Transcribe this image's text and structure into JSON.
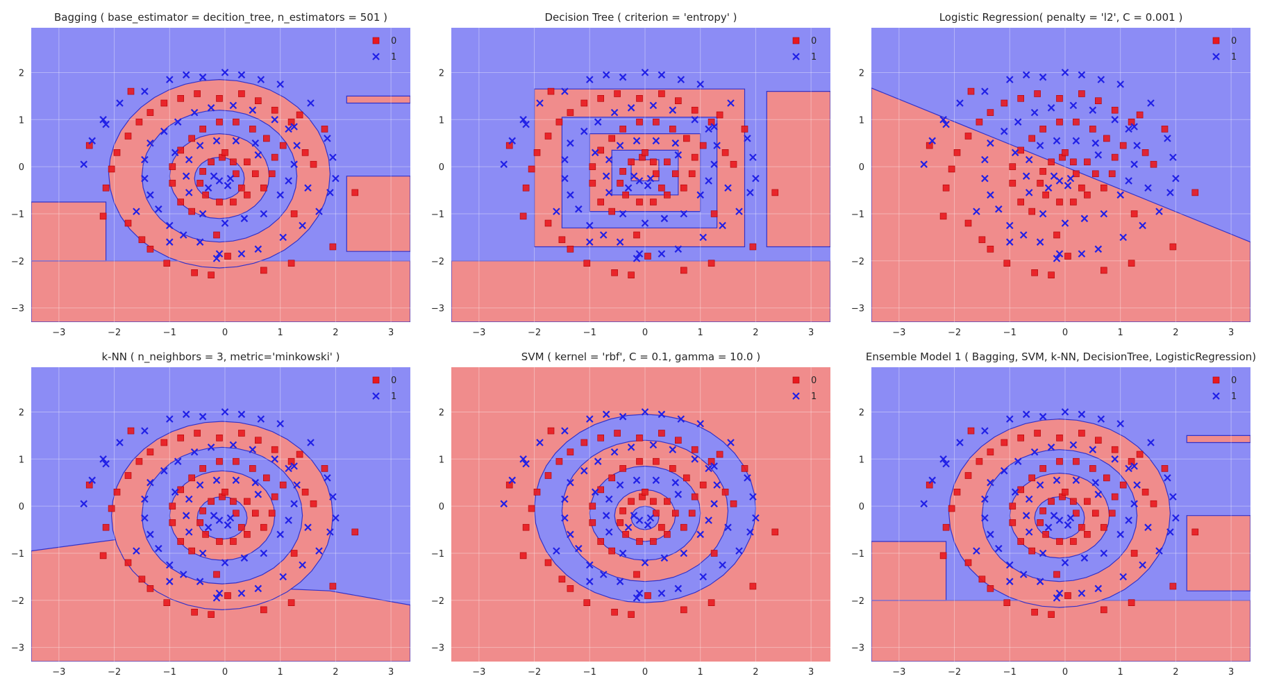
{
  "colors": {
    "class0_region": "#f08c8c",
    "class1_region": "#8c8cf5",
    "class0_marker": "#e8191f",
    "class1_marker": "#2020e6",
    "boundary": "#3232c8"
  },
  "chart_data": [
    {
      "type": "scatter",
      "title": "Bagging ( base_estimator = decition_tree, n_estimators = 501 )",
      "xlim": [
        -3.5,
        3.35
      ],
      "ylim": [
        -3.3,
        2.95
      ],
      "xticks": [
        "−3",
        "−2",
        "−1",
        "0",
        "1",
        "2",
        "3"
      ],
      "yticks": [
        "2",
        "1",
        "0",
        "−1",
        "−2",
        "−3"
      ],
      "legend": [
        "0",
        "1"
      ],
      "legend_position": "top-right",
      "grid": true,
      "decision_region": "bagging"
    },
    {
      "type": "scatter",
      "title": "Decision Tree ( criterion = 'entropy' )",
      "xlim": [
        -3.5,
        3.35
      ],
      "ylim": [
        -3.3,
        2.95
      ],
      "xticks": [
        "−3",
        "−2",
        "−1",
        "0",
        "1",
        "2",
        "3"
      ],
      "yticks": [
        "2",
        "1",
        "0",
        "−1",
        "−2",
        "−3"
      ],
      "legend": [
        "0",
        "1"
      ],
      "legend_position": "top-right",
      "grid": true,
      "decision_region": "tree"
    },
    {
      "type": "scatter",
      "title": "Logistic Regression( penalty = 'l2', C = 0.001 )",
      "xlim": [
        -3.5,
        3.35
      ],
      "ylim": [
        -3.3,
        2.95
      ],
      "xticks": [
        "−3",
        "−2",
        "−1",
        "0",
        "1",
        "2",
        "3"
      ],
      "yticks": [
        "2",
        "1",
        "0",
        "−1",
        "−2",
        "−3"
      ],
      "legend": [
        "0",
        "1"
      ],
      "legend_position": "top-right",
      "grid": true,
      "decision_region": "linear",
      "boundary_line": [
        [
          -3.5,
          1.67
        ],
        [
          3.35,
          -1.6
        ]
      ]
    },
    {
      "type": "scatter",
      "title": "k-NN ( n_neighbors = 3, metric='minkowski' )",
      "xlim": [
        -3.5,
        3.35
      ],
      "ylim": [
        -3.3,
        2.95
      ],
      "xticks": [
        "−3",
        "−2",
        "−1",
        "0",
        "1",
        "2",
        "3"
      ],
      "yticks": [
        "2",
        "1",
        "0",
        "−1",
        "−2",
        "−3"
      ],
      "legend": [
        "0",
        "1"
      ],
      "legend_position": "top-right",
      "grid": true,
      "decision_region": "knn"
    },
    {
      "type": "scatter",
      "title": "SVM ( kernel = 'rbf', C = 0.1, gamma = 10.0 )",
      "xlim": [
        -3.5,
        3.35
      ],
      "ylim": [
        -3.3,
        2.95
      ],
      "xticks": [
        "−3",
        "−2",
        "−1",
        "0",
        "1",
        "2",
        "3"
      ],
      "yticks": [
        "2",
        "1",
        "0",
        "−1",
        "−2",
        "−3"
      ],
      "legend": [
        "0",
        "1"
      ],
      "legend_position": "top-right",
      "grid": true,
      "decision_region": "svm"
    },
    {
      "type": "scatter",
      "title": "Ensemble Model 1 ( Bagging, SVM, k-NN, DecisionTree, LogisticRegression)",
      "xlim": [
        -3.5,
        3.35
      ],
      "ylim": [
        -3.3,
        2.95
      ],
      "xticks": [
        "−3",
        "−2",
        "−1",
        "0",
        "1",
        "2",
        "3"
      ],
      "yticks": [
        "2",
        "1",
        "0",
        "−1",
        "−2",
        "−3"
      ],
      "legend": [
        "0",
        "1"
      ],
      "legend_position": "top-right",
      "grid": true,
      "decision_region": "ensemble"
    }
  ],
  "points": {
    "class0": [
      [
        0.2,
        -0.15
      ],
      [
        0.3,
        -0.45
      ],
      [
        0.4,
        0.1
      ],
      [
        0.15,
        0.1
      ],
      [
        -0.05,
        0.2
      ],
      [
        -0.25,
        0.1
      ],
      [
        -0.4,
        -0.1
      ],
      [
        -0.45,
        -0.35
      ],
      [
        -0.35,
        -0.6
      ],
      [
        -0.1,
        -0.75
      ],
      [
        0.15,
        -0.75
      ],
      [
        0.4,
        -0.6
      ],
      [
        0.7,
        -0.45
      ],
      [
        0.85,
        -0.15
      ],
      [
        0.9,
        0.2
      ],
      [
        0.75,
        0.6
      ],
      [
        0.5,
        0.8
      ],
      [
        0.2,
        0.95
      ],
      [
        -0.1,
        0.95
      ],
      [
        -0.4,
        0.8
      ],
      [
        -0.6,
        0.6
      ],
      [
        -0.8,
        0.35
      ],
      [
        -0.95,
        0.0
      ],
      [
        -0.95,
        -0.35
      ],
      [
        -0.8,
        -0.75
      ],
      [
        1.25,
        -1.0
      ],
      [
        1.45,
        0.3
      ],
      [
        1.2,
        0.95
      ],
      [
        0.9,
        1.2
      ],
      [
        0.6,
        1.4
      ],
      [
        0.3,
        1.55
      ],
      [
        -0.1,
        1.45
      ],
      [
        -0.5,
        1.55
      ],
      [
        -0.8,
        1.45
      ],
      [
        -1.1,
        1.35
      ],
      [
        -1.35,
        1.15
      ],
      [
        -1.55,
        0.95
      ],
      [
        -1.75,
        0.65
      ],
      [
        -1.95,
        0.3
      ],
      [
        -2.05,
        -0.05
      ],
      [
        -2.15,
        -0.45
      ],
      [
        -1.75,
        -1.2
      ],
      [
        -1.5,
        -1.55
      ],
      [
        -1.35,
        -1.75
      ],
      [
        -1.05,
        -2.05
      ],
      [
        -0.55,
        -2.25
      ],
      [
        -0.25,
        -2.3
      ],
      [
        0.7,
        -2.2
      ],
      [
        1.2,
        -2.05
      ],
      [
        1.95,
        -1.7
      ],
      [
        2.35,
        -0.55
      ],
      [
        1.6,
        0.05
      ],
      [
        1.05,
        0.45
      ],
      [
        -1.7,
        1.6
      ],
      [
        -2.45,
        0.45
      ],
      [
        -2.2,
        -1.05
      ],
      [
        0.0,
        0.3
      ],
      [
        0.55,
        -0.15
      ],
      [
        -0.6,
        -0.95
      ],
      [
        1.35,
        1.1
      ],
      [
        -0.15,
        -1.45
      ],
      [
        0.05,
        -1.9
      ],
      [
        1.8,
        0.8
      ]
    ],
    "class1": [
      [
        -0.1,
        -0.3
      ],
      [
        0.05,
        -0.4
      ],
      [
        -0.2,
        -0.2
      ],
      [
        0.1,
        -0.25
      ],
      [
        -0.3,
        -0.45
      ],
      [
        -0.15,
        0.55
      ],
      [
        0.2,
        0.55
      ],
      [
        0.55,
        0.5
      ],
      [
        0.6,
        0.25
      ],
      [
        -0.45,
        0.45
      ],
      [
        -0.65,
        0.15
      ],
      [
        -0.7,
        -0.2
      ],
      [
        -0.65,
        -0.55
      ],
      [
        -0.4,
        -1.0
      ],
      [
        0.0,
        -1.2
      ],
      [
        0.35,
        -1.1
      ],
      [
        0.7,
        -1.0
      ],
      [
        1.0,
        -0.6
      ],
      [
        1.15,
        -0.3
      ],
      [
        1.25,
        0.05
      ],
      [
        1.3,
        0.45
      ],
      [
        1.15,
        0.8
      ],
      [
        0.9,
        1.0
      ],
      [
        0.5,
        1.2
      ],
      [
        0.15,
        1.3
      ],
      [
        -0.25,
        1.25
      ],
      [
        -0.55,
        1.15
      ],
      [
        -0.85,
        0.95
      ],
      [
        -1.1,
        0.75
      ],
      [
        -1.35,
        0.5
      ],
      [
        -1.45,
        0.15
      ],
      [
        -1.45,
        -0.25
      ],
      [
        -1.35,
        -0.6
      ],
      [
        -1.2,
        -0.9
      ],
      [
        -1.0,
        -1.25
      ],
      [
        -0.75,
        -1.45
      ],
      [
        -0.45,
        -1.6
      ],
      [
        -0.1,
        -1.85
      ],
      [
        0.3,
        -1.85
      ],
      [
        0.6,
        -1.75
      ],
      [
        1.05,
        -1.5
      ],
      [
        1.4,
        -1.25
      ],
      [
        1.7,
        -0.95
      ],
      [
        1.9,
        -0.55
      ],
      [
        2.0,
        -0.25
      ],
      [
        1.95,
        0.2
      ],
      [
        1.85,
        0.6
      ],
      [
        1.55,
        1.35
      ],
      [
        1.0,
        1.75
      ],
      [
        0.65,
        1.85
      ],
      [
        0.3,
        1.95
      ],
      [
        0.0,
        2.0
      ],
      [
        -0.4,
        1.9
      ],
      [
        -0.7,
        1.95
      ],
      [
        -1.0,
        1.85
      ],
      [
        -1.45,
        1.6
      ],
      [
        -1.9,
        1.35
      ],
      [
        -2.2,
        1.0
      ],
      [
        -2.4,
        0.55
      ],
      [
        -2.55,
        0.05
      ],
      [
        -2.15,
        0.9
      ],
      [
        -1.6,
        -0.95
      ],
      [
        -1.0,
        -1.6
      ],
      [
        -0.15,
        -1.95
      ],
      [
        1.5,
        -0.45
      ],
      [
        1.25,
        0.85
      ],
      [
        -0.9,
        0.3
      ]
    ]
  }
}
